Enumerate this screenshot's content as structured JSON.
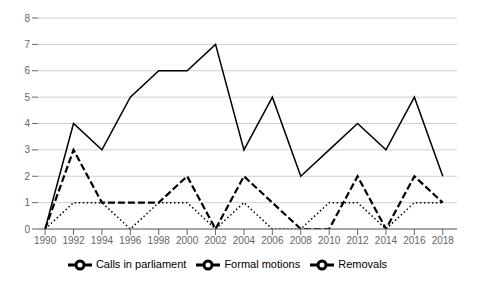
{
  "chart_data": {
    "type": "line",
    "x": [
      1990,
      1992,
      1994,
      1996,
      1998,
      2000,
      2002,
      2004,
      2006,
      2008,
      2010,
      2012,
      2014,
      2016,
      2018
    ],
    "series": [
      {
        "name": "Calls in parliament",
        "color": "#000000",
        "line_style": "solid",
        "values": [
          0,
          4,
          3,
          5,
          6,
          6,
          7,
          3,
          5,
          2,
          3,
          4,
          3,
          5,
          2
        ]
      },
      {
        "name": "Formal motions",
        "color": "#000000",
        "line_style": "dashed",
        "values": [
          0,
          3,
          1,
          1,
          1,
          2,
          0,
          2,
          1,
          0,
          0,
          2,
          0,
          2,
          1
        ]
      },
      {
        "name": "Removals",
        "color": "#000000",
        "line_style": "dotted",
        "values": [
          0,
          1,
          1,
          0,
          1,
          1,
          0,
          1,
          0,
          0,
          1,
          1,
          0,
          1,
          1
        ]
      }
    ],
    "xlim": [
      1989.5,
      2019.0
    ],
    "xticks": [
      1990,
      1992,
      1994,
      1996,
      1998,
      2000,
      2002,
      2004,
      2006,
      2008,
      2010,
      2012,
      2014,
      2016,
      2018
    ],
    "ylim": [
      0,
      8
    ],
    "yticks": [
      0,
      1,
      2,
      3,
      4,
      5,
      6,
      7,
      8
    ],
    "grid": true,
    "legend": "bottom"
  }
}
